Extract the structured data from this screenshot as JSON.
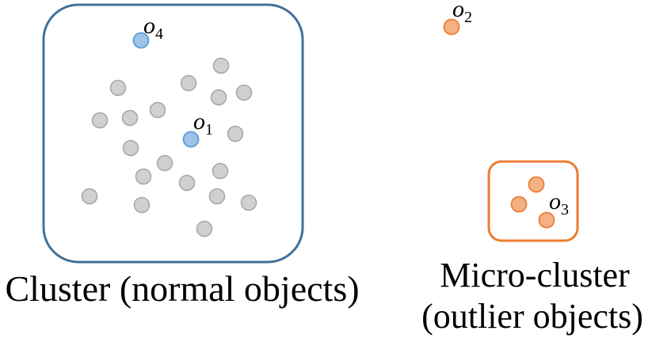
{
  "colors": {
    "cluster_box": "#41719c",
    "micro_box": "#ed7d31",
    "normal_fill": "#d0d0d0",
    "normal_stroke": "#a6a6a6",
    "blue_fill": "#9dc3e6",
    "blue_stroke": "#5b9bd5",
    "orange_fill": "#f4b183",
    "orange_stroke": "#ed7d31"
  },
  "labels": {
    "o1": {
      "letter": "o",
      "sub": "1"
    },
    "o2": {
      "letter": "o",
      "sub": "2"
    },
    "o3": {
      "letter": "o",
      "sub": "3"
    },
    "o4": {
      "letter": "o",
      "sub": "4"
    }
  },
  "captions": {
    "cluster": "Cluster (normal objects)",
    "micro_line1": "Micro-cluster",
    "micro_line2": "(outlier objects)"
  }
}
